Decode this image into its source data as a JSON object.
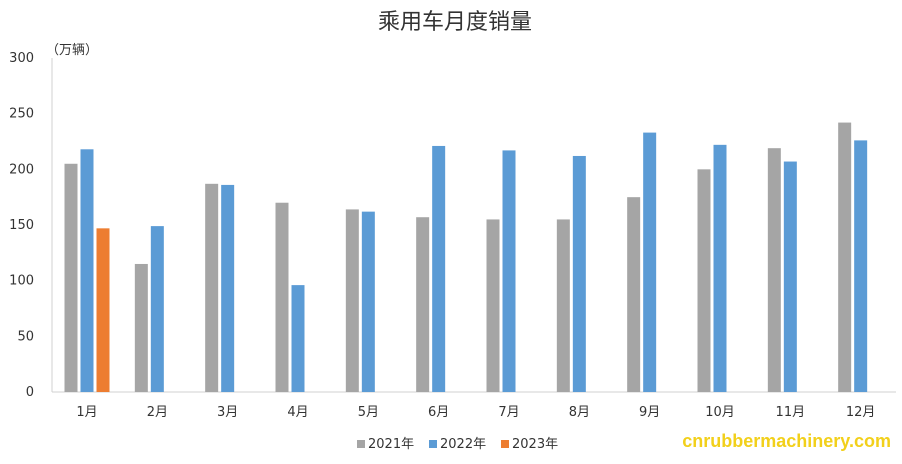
{
  "chart_data": {
    "type": "bar",
    "title": "乘用车月度销量",
    "unit_label": "（万辆）",
    "xlabel": "",
    "ylabel": "",
    "categories": [
      "1月",
      "2月",
      "3月",
      "4月",
      "5月",
      "6月",
      "7月",
      "8月",
      "9月",
      "10月",
      "11月",
      "12月"
    ],
    "ylim": [
      0,
      300
    ],
    "yticks": [
      0,
      50,
      100,
      150,
      200,
      250,
      300
    ],
    "grid": false,
    "legend_position": "bottom",
    "series": [
      {
        "name": "2021年",
        "color": "#a5a5a5",
        "values": [
          205,
          115,
          187,
          170,
          164,
          157,
          155,
          155,
          175,
          200,
          219,
          242
        ]
      },
      {
        "name": "2022年",
        "color": "#5b9bd5",
        "values": [
          218,
          149,
          186,
          96,
          162,
          221,
          217,
          212,
          233,
          222,
          207,
          226
        ]
      },
      {
        "name": "2023年",
        "color": "#ed7d31",
        "values": [
          147,
          null,
          null,
          null,
          null,
          null,
          null,
          null,
          null,
          null,
          null,
          null
        ]
      }
    ]
  },
  "watermark": "cnrubbermachinery.com"
}
